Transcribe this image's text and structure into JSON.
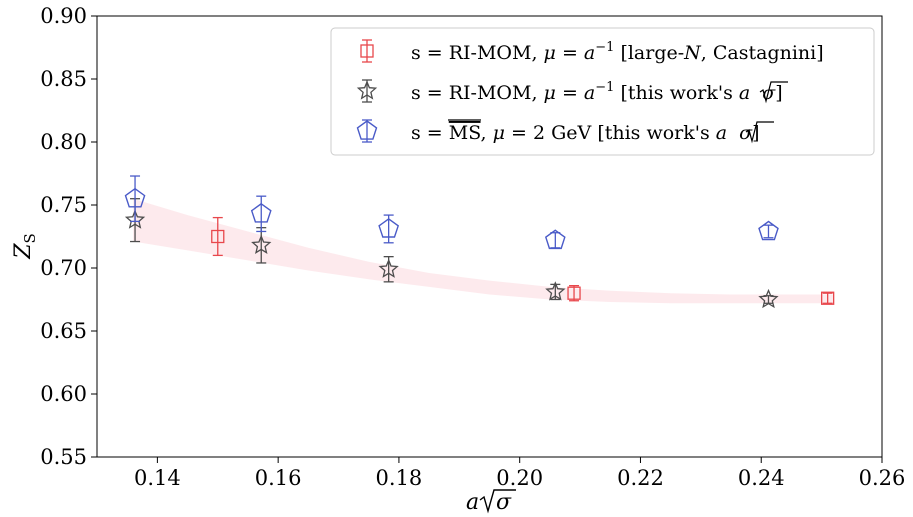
{
  "chart_data": {
    "type": "scatter",
    "xlabel": "a√σ",
    "ylabel": "ZS",
    "xlim": [
      0.13,
      0.26
    ],
    "ylim": [
      0.55,
      0.9
    ],
    "xticks": [
      "0.14",
      "0.16",
      "0.18",
      "0.20",
      "0.22",
      "0.24",
      "0.26"
    ],
    "yticks": [
      "0.55",
      "0.60",
      "0.65",
      "0.70",
      "0.75",
      "0.80",
      "0.85",
      "0.90"
    ],
    "grid": false,
    "legend_position": "top-right",
    "band": {
      "color": "#f9b8c4",
      "x": [
        0.136,
        0.145,
        0.155,
        0.165,
        0.175,
        0.185,
        0.195,
        0.205,
        0.215,
        0.225,
        0.235,
        0.245,
        0.252
      ],
      "lower": [
        0.721,
        0.714,
        0.706,
        0.698,
        0.691,
        0.685,
        0.679,
        0.675,
        0.673,
        0.672,
        0.672,
        0.672,
        0.672
      ],
      "upper": [
        0.755,
        0.742,
        0.729,
        0.716,
        0.705,
        0.696,
        0.69,
        0.685,
        0.682,
        0.68,
        0.679,
        0.679,
        0.679
      ]
    },
    "series": [
      {
        "name": "s = RI-MOM, μ = a⁻¹ [large-N, Castagnini]",
        "marker": "square",
        "color": "#e8474c",
        "points": [
          {
            "x": 0.15,
            "y": 0.725,
            "err": 0.015
          },
          {
            "x": 0.209,
            "y": 0.68,
            "err": 0.006
          },
          {
            "x": 0.251,
            "y": 0.676,
            "err": 0.004
          }
        ]
      },
      {
        "name": "s = RI-MOM, μ = a⁻¹ [this work's a√σ]",
        "marker": "star",
        "color": "#4d4d4d",
        "points": [
          {
            "x": 0.1363,
            "y": 0.738,
            "err": 0.017
          },
          {
            "x": 0.1572,
            "y": 0.718,
            "err": 0.014
          },
          {
            "x": 0.1783,
            "y": 0.699,
            "err": 0.01
          },
          {
            "x": 0.2059,
            "y": 0.681,
            "err": 0.006
          },
          {
            "x": 0.2412,
            "y": 0.675,
            "err": 0.003
          }
        ]
      },
      {
        "name": "s = MS, μ = 2 GeV [this work's a√σ]",
        "marker": "pentagon",
        "color": "#4a5bc8",
        "points": [
          {
            "x": 0.1363,
            "y": 0.755,
            "err": 0.018
          },
          {
            "x": 0.1572,
            "y": 0.743,
            "err": 0.014
          },
          {
            "x": 0.1783,
            "y": 0.731,
            "err": 0.011
          },
          {
            "x": 0.2059,
            "y": 0.722,
            "err": 0.006
          },
          {
            "x": 0.2412,
            "y": 0.729,
            "err": 0.005
          }
        ]
      }
    ]
  },
  "legend": {
    "entries": [
      {
        "prefix": "s = RI-MOM, ",
        "mu": "μ",
        "mid": " = ",
        "a": "a",
        "sup": "−1",
        "bracket_open": " [large-",
        "N": "N",
        "tail": ", Castagnini]"
      },
      {
        "prefix": "s = RI-MOM, ",
        "mu": "μ",
        "mid": " = ",
        "a": "a",
        "sup": "−1",
        "tail_text": " [this work's ",
        "a2": "a",
        "sigma": "σ",
        "close": "]"
      },
      {
        "prefix": "s = ",
        "ms": "MS",
        "comma": ", ",
        "mu": "μ",
        "mid": " = 2 GeV",
        "tail_text": " [this work's ",
        "a2": "a",
        "sigma": "σ",
        "close": "]"
      }
    ]
  },
  "axes": {
    "xlabel_a": "a",
    "xlabel_sigma": "σ",
    "ylabel_Z": "Z",
    "ylabel_sub": "S"
  }
}
